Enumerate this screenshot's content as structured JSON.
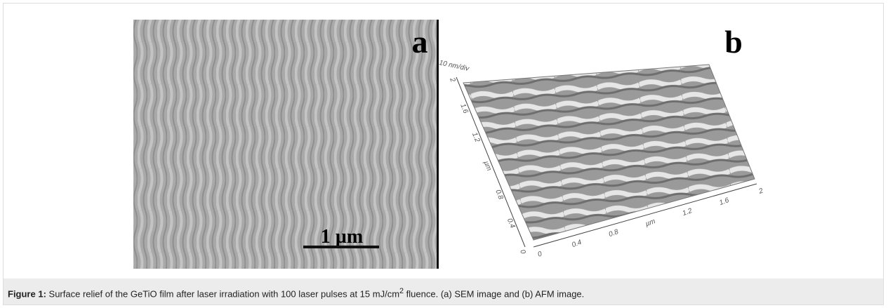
{
  "figure": {
    "panel_a": {
      "label": "a",
      "scale_bar": "1 µm"
    },
    "panel_b": {
      "label": "b",
      "z_scale": "10 nm/div",
      "left_axis": [
        "0",
        "0.4",
        "0.8",
        "µm",
        "1.2",
        "1.6",
        "2"
      ],
      "bottom_axis": [
        "0",
        "0.4",
        "0.8",
        "µm",
        "1.2",
        "1.6",
        "2"
      ]
    },
    "caption": {
      "label": "Figure 1:",
      "text": "Surface relief of the GeTiO film after laser irradiation with 100 laser pulses at 15 mJ/cm",
      "superscript": "2",
      "text_end": " fluence. (a) SEM image and (b) AFM image."
    }
  }
}
